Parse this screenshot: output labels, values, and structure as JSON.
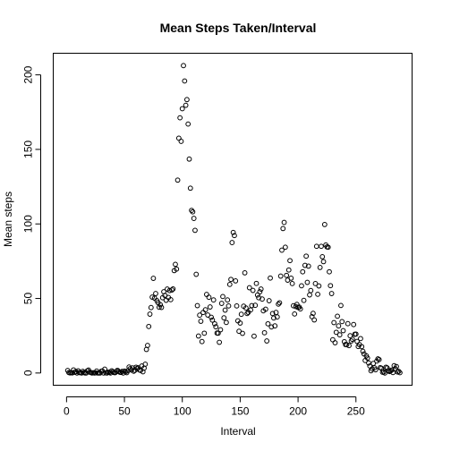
{
  "chart_data": {
    "type": "scatter",
    "title": "Mean Steps Taken/Interval",
    "xlabel": "Interval",
    "ylabel": "Mean steps",
    "xlim": [
      -11.5,
      298.5
    ],
    "ylim": [
      -8.2,
      214.5
    ],
    "xticks": [
      0,
      50,
      100,
      150,
      200,
      250
    ],
    "yticks": [
      0,
      50,
      100,
      150,
      200
    ],
    "grid": false,
    "legend": "none",
    "marker": "open-circle",
    "x_start": 1,
    "y": [
      1.7,
      0.3,
      0.1,
      0.2,
      0.1,
      2.1,
      0.5,
      0.9,
      0.0,
      1.5,
      0.3,
      0.2,
      0.0,
      1.1,
      0.3,
      0.0,
      0.0,
      1.5,
      2.0,
      0.6,
      0.3,
      0.0,
      0.2,
      0.0,
      0.1,
      1.3,
      0.0,
      0.0,
      0.0,
      1.2,
      1.4,
      0.0,
      2.6,
      0.1,
      0.0,
      0.6,
      0.4,
      0.0,
      1.5,
      0.9,
      0.3,
      0.2,
      1.1,
      1.8,
      1.0,
      0.5,
      0.4,
      1.1,
      0.0,
      1.3,
      0.8,
      0.2,
      1.5,
      4.0,
      2.9,
      2.0,
      3.4,
      1.2,
      1.8,
      3.9,
      3.1,
      3.5,
      2.0,
      1.7,
      4.7,
      0.8,
      3.3,
      5.9,
      15.8,
      18.5,
      31.2,
      39.5,
      43.9,
      50.9,
      63.5,
      50.2,
      53.3,
      48.6,
      47.2,
      44.1,
      45.8,
      44.0,
      50.5,
      54.5,
      52.0,
      48.8,
      56.3,
      50.7,
      55.3,
      49.2,
      55.7,
      56.4,
      68.7,
      72.9,
      69.7,
      129.4,
      157.5,
      171.2,
      155.4,
      177.3,
      206.2,
      195.9,
      179.6,
      183.4,
      167.0,
      143.5,
      124.0,
      109.1,
      108.1,
      103.7,
      95.7,
      66.2,
      45.2,
      24.8,
      38.8,
      34.7,
      21.1,
      40.6,
      26.7,
      42.4,
      52.7,
      38.9,
      50.8,
      44.3,
      37.4,
      35.5,
      49.0,
      33.0,
      31.0,
      26.8,
      26.7,
      20.6,
      29.0,
      46.7,
      51.3,
      37.0,
      42.2,
      33.9,
      49.0,
      45.0,
      59.4,
      62.8,
      87.5,
      94.3,
      92.2,
      61.8,
      45.0,
      35.0,
      28.0,
      33.5,
      39.4,
      26.6,
      44.8,
      67.2,
      43.6,
      39.9,
      40.7,
      57.2,
      42.3,
      45.2,
      55.4,
      24.7,
      45.4,
      60.1,
      52.3,
      50.5,
      54.5,
      56.3,
      49.6,
      41.7,
      27.0,
      42.8,
      21.5,
      33.0,
      48.5,
      63.7,
      30.9,
      39.9,
      36.9,
      31.6,
      40.6,
      37.6,
      46.2,
      47.1,
      65.0,
      82.4,
      96.9,
      101.0,
      84.4,
      65.5,
      62.3,
      69.1,
      75.4,
      63.6,
      60.0,
      45.1,
      39.6,
      44.6,
      46.0,
      44.0,
      44.2,
      43.0,
      58.5,
      67.9,
      48.7,
      72.2,
      78.4,
      60.8,
      71.7,
      52.4,
      55.3,
      37.8,
      40.0,
      35.6,
      60.0,
      85.0,
      52.8,
      58.4,
      70.8,
      85.0,
      78.0,
      74.7,
      99.6,
      85.9,
      84.6,
      84.4,
      67.9,
      58.6,
      53.3,
      22.3,
      33.8,
      20.3,
      27.3,
      38.1,
      31.6,
      25.6,
      45.3,
      34.5,
      28.4,
      21.0,
      19.1,
      19.0,
      33.1,
      18.4,
      25.0,
      21.5,
      22.6,
      32.5,
      26.0,
      26.1,
      21.2,
      17.8,
      19.1,
      23.1,
      17.7,
      14.6,
      12.8,
      8.4,
      11.5,
      10.0,
      6.7,
      4.7,
      1.5,
      2.7,
      6.4,
      3.5,
      2.2,
      8.0,
      9.5,
      9.0,
      3.6,
      3.2,
      0.5,
      0.7,
      0.0,
      3.9,
      3.4,
      1.6,
      1.0,
      1.4,
      2.0,
      0.3,
      4.9,
      2.9,
      4.3,
      0.7,
      1.1,
      0.2
    ]
  }
}
